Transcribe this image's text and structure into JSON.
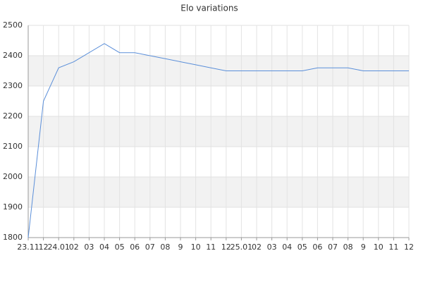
{
  "chart_data": {
    "type": "line",
    "title": "Elo variations",
    "categories": [
      "23.11",
      "12",
      "24.01",
      "02",
      "03",
      "04",
      "05",
      "06",
      "07",
      "08",
      "9",
      "10",
      "11",
      "12",
      "25.01",
      "02",
      "03",
      "04",
      "05",
      "06",
      "07",
      "08",
      "9",
      "10",
      "11",
      "12"
    ],
    "series": [
      {
        "name": "Elo",
        "color": "#5b8fd9",
        "values": [
          1800,
          2250,
          2360,
          2380,
          2410,
          2440,
          2410,
          2410,
          2400,
          2390,
          2380,
          2370,
          2360,
          2350,
          2350,
          2350,
          2350,
          2350,
          2350,
          2360,
          2360,
          2360,
          2350,
          2350,
          2350,
          2350
        ]
      }
    ],
    "ylim": [
      1800,
      2500
    ],
    "yticks": [
      1800,
      1900,
      2000,
      2100,
      2200,
      2300,
      2400,
      2500
    ],
    "grid": true
  }
}
